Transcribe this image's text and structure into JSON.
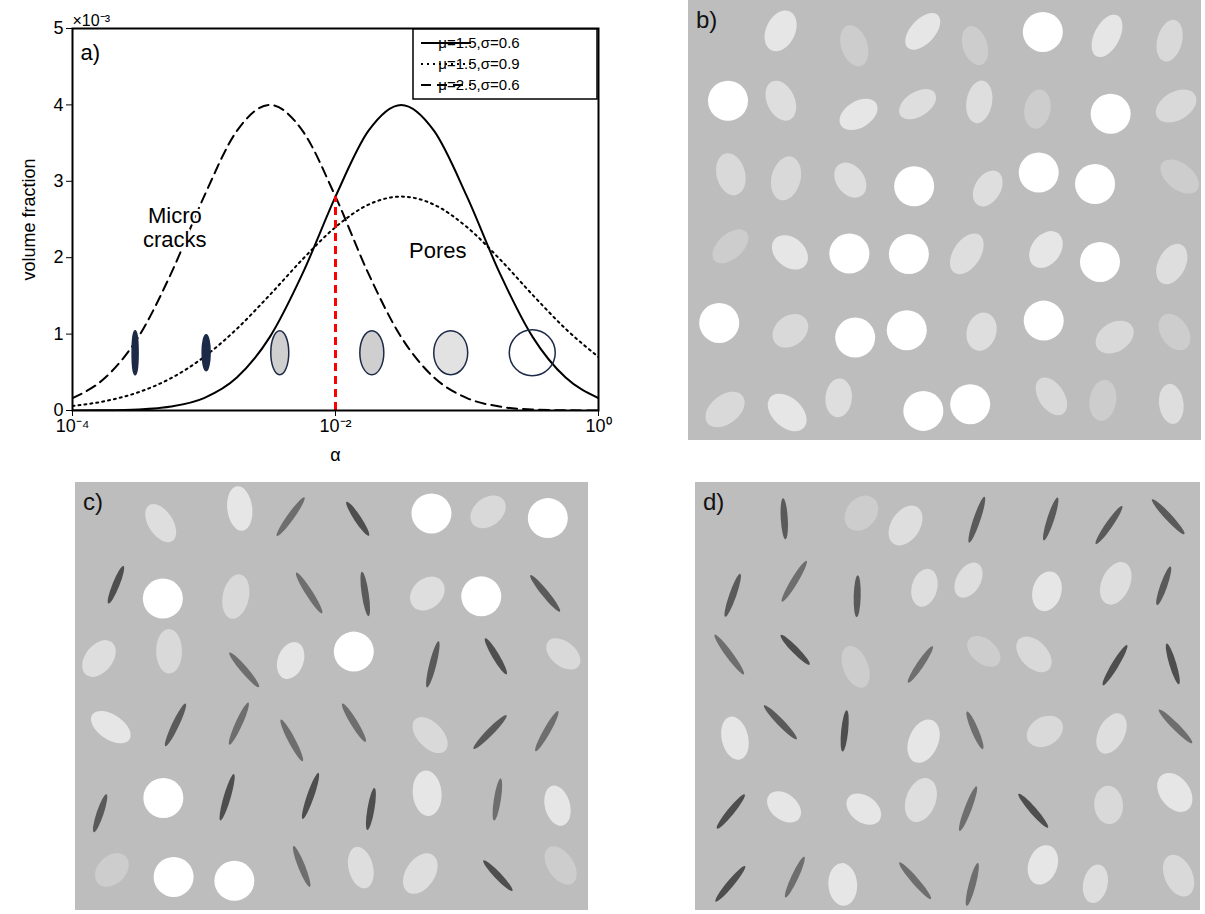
{
  "chart_data": {
    "type": "line",
    "panel": "a)",
    "x_label": "α",
    "y_label": "volume fraction",
    "log": "x",
    "grid": false,
    "legend": "top-right",
    "xlim": [
      0.0001,
      1
    ],
    "xticks": [
      {
        "value": 0.0001,
        "label": "10⁻⁴"
      },
      {
        "value": 0.01,
        "label": "10⁻²"
      },
      {
        "value": 1,
        "label": "10⁰"
      }
    ],
    "ylim": [
      0,
      0.005
    ],
    "yticks": [
      0,
      {
        "value": 0.001,
        "label": "1"
      },
      {
        "value": 0.002,
        "label": "2"
      },
      {
        "value": 0.003,
        "label": "3"
      },
      {
        "value": 0.004,
        "label": "4"
      },
      {
        "value": 0.005,
        "label": "5"
      }
    ],
    "x": [
      0.0001,
      0.0001778,
      0.0003162,
      0.0005623,
      0.001,
      0.001778,
      0.003162,
      0.005623,
      0.01,
      0.01778,
      0.03162,
      0.05623,
      0.1,
      0.1778,
      0.3162,
      0.5623,
      1
    ],
    "series": [
      {
        "name": "μ=1.5,σ=0.6",
        "color": "#000000",
        "line_style": "solid",
        "values": [
          5e-07,
          2.9e-06,
          1.3e-05,
          5.1e-05,
          0.000162,
          0.000431,
          0.00096,
          0.001794,
          0.0028,
          0.003659,
          0.004,
          0.003659,
          0.0028,
          0.001794,
          0.00096,
          0.000431,
          0.000162
        ]
      },
      {
        "name": "μ=1.5,σ=0.9",
        "color": "#000000",
        "line_style": "dotted",
        "values": [
          5.95e-05,
          0.0001237,
          0.000238,
          0.000424,
          0.0007,
          0.001069,
          0.001512,
          0.00198,
          0.0024,
          0.002694,
          0.0028,
          0.002694,
          0.0024,
          0.00198,
          0.001512,
          0.001069,
          0.0007
        ]
      },
      {
        "name": "μ=2.5,σ=0.6",
        "color": "#000000",
        "line_style": "dashed",
        "values": [
          0.000162,
          0.000431,
          0.00096,
          0.001794,
          0.0028,
          0.003659,
          0.004,
          0.003659,
          0.0028,
          0.001794,
          0.00096,
          0.000431,
          0.000162,
          5.1e-05,
          1.3e-05,
          2.9e-06,
          5e-07
        ]
      }
    ],
    "reference_lines": [
      {
        "x": 0.01,
        "y": [
          0,
          0.0028
        ],
        "color": "#ff0000",
        "line_style": "dashed"
      }
    ],
    "annotations": [
      {
        "text": "×10⁻³"
      },
      {
        "text": "Micro\ncracks",
        "x": 0.0006,
        "y": 0.0024
      },
      {
        "text": "Pores",
        "x": 0.06,
        "y": 0.0021
      }
    ]
  },
  "panels": [
    {
      "label": "b)"
    },
    {
      "label": "c)"
    },
    {
      "label": "d)"
    }
  ]
}
